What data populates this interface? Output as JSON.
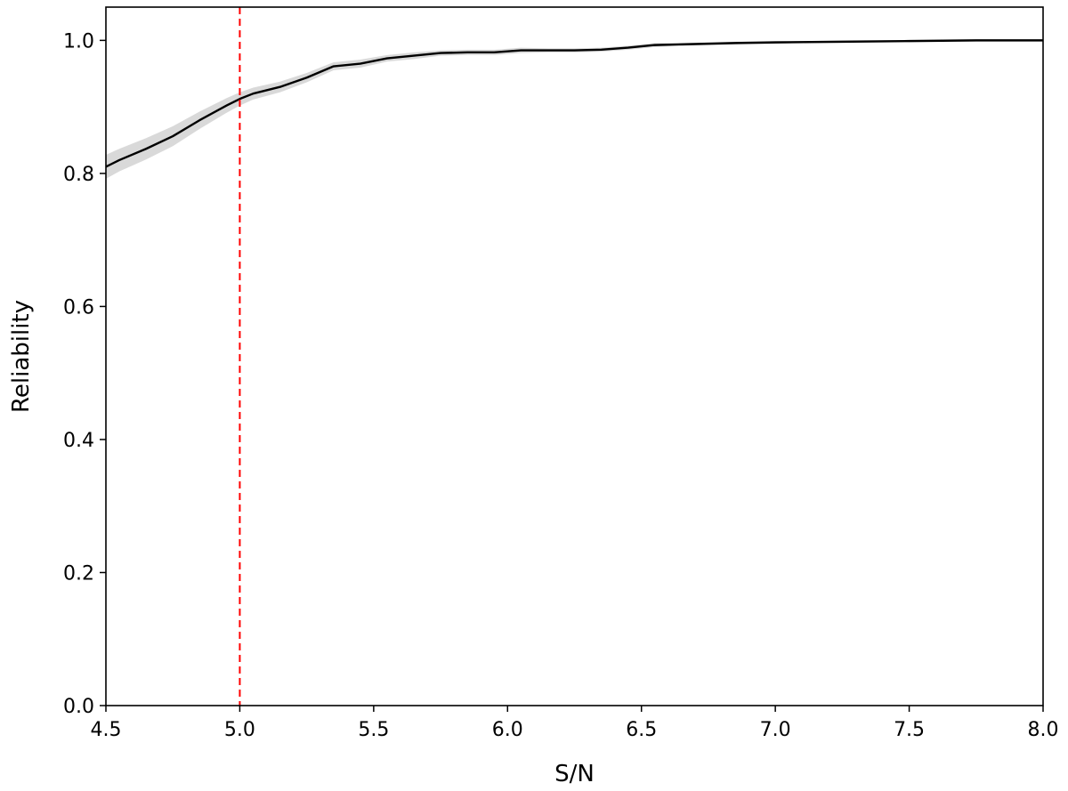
{
  "chart_data": {
    "type": "line",
    "xlabel": "S/N",
    "ylabel": "Reliability",
    "xlim": [
      4.5,
      8.0
    ],
    "ylim": [
      0.0,
      1.05
    ],
    "xticks": [
      "4.5",
      "5.0",
      "5.5",
      "6.0",
      "6.5",
      "7.0",
      "7.5",
      "8.0"
    ],
    "yticks": [
      "0.0",
      "0.2",
      "0.4",
      "0.6",
      "0.8",
      "1.0"
    ],
    "grid": false,
    "series": [
      {
        "color": "#000000",
        "uncertainty_band_color": "#d9d9d9",
        "x": [
          4.5,
          4.55,
          4.65,
          4.75,
          4.85,
          4.95,
          5.0,
          5.05,
          5.15,
          5.25,
          5.35,
          5.45,
          5.55,
          5.65,
          5.75,
          5.85,
          5.95,
          6.05,
          6.15,
          6.25,
          6.35,
          6.45,
          6.55,
          6.65,
          6.75,
          6.85,
          7.0,
          7.25,
          7.5,
          7.75,
          8.0
        ],
        "y": [
          0.81,
          0.82,
          0.837,
          0.856,
          0.88,
          0.902,
          0.912,
          0.92,
          0.93,
          0.944,
          0.961,
          0.965,
          0.973,
          0.977,
          0.981,
          0.982,
          0.982,
          0.985,
          0.985,
          0.985,
          0.986,
          0.989,
          0.993,
          0.994,
          0.995,
          0.996,
          0.997,
          0.998,
          0.999,
          1.0,
          1.0
        ],
        "band_width": [
          0.018,
          0.017,
          0.016,
          0.015,
          0.013,
          0.011,
          0.01,
          0.009,
          0.008,
          0.007,
          0.006,
          0.006,
          0.005,
          0.005,
          0.004,
          0.004,
          0.004,
          0.004,
          0.003,
          0.003,
          0.003,
          0.003,
          0.003,
          0.002,
          0.002,
          0.002,
          0.002,
          0.001,
          0.001,
          0.001,
          0.001
        ]
      }
    ],
    "annotations": [
      {
        "type": "vline",
        "x": 5.0,
        "color": "#ff0000",
        "style": "dashed"
      }
    ]
  }
}
